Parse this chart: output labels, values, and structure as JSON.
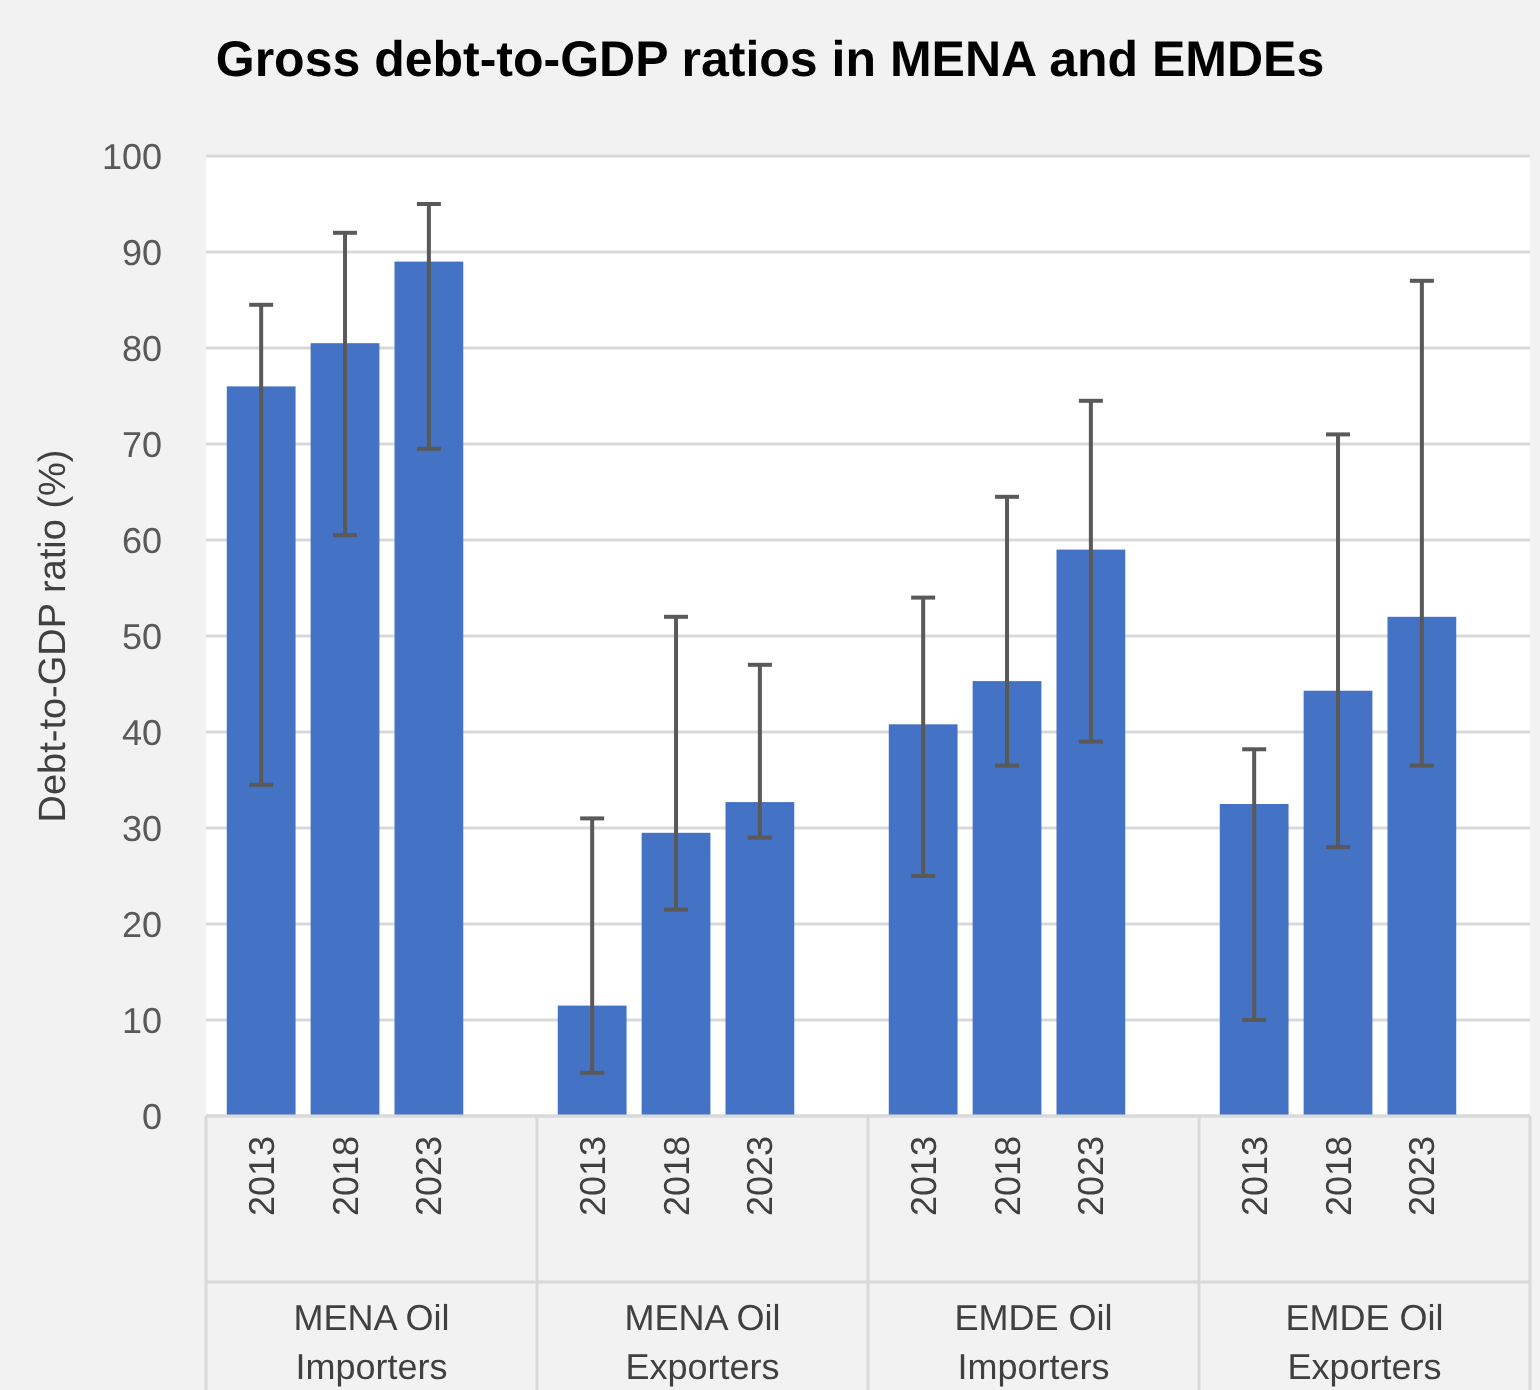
{
  "chart_data": {
    "type": "bar",
    "title": "Gross debt-to-GDP ratios in MENA and EMDEs",
    "ylabel": "Debt-to-GDP ratio (%)",
    "categories": [
      "2013",
      "2018",
      "2023",
      "2013",
      "2018",
      "2023",
      "2013",
      "2018",
      "2023",
      "2013",
      "2018",
      "2023"
    ],
    "values": [
      76,
      80.5,
      89,
      11.5,
      29.5,
      32.7,
      40.8,
      45.3,
      59,
      32.5,
      44.3,
      52
    ],
    "errors": [
      [
        34.5,
        84.5
      ],
      [
        60.5,
        92
      ],
      [
        69.5,
        95
      ],
      [
        4.5,
        31
      ],
      [
        21.5,
        52
      ],
      [
        29,
        47
      ],
      [
        25,
        54
      ],
      [
        36.5,
        64.5
      ],
      [
        39,
        74.5
      ],
      [
        10,
        38.2
      ],
      [
        28,
        71
      ],
      [
        36.5,
        87
      ]
    ],
    "color": "#4472c4",
    "ylim": [
      0,
      100
    ],
    "yticks": [
      0,
      10,
      20,
      30,
      40,
      50,
      60,
      70,
      80,
      90,
      100
    ],
    "grid": "y",
    "annotations": [
      "MENA Oil Importers",
      "MENA Oil Exporters",
      "EMDE Oil Importers",
      "EMDE Oil Exporters"
    ]
  }
}
